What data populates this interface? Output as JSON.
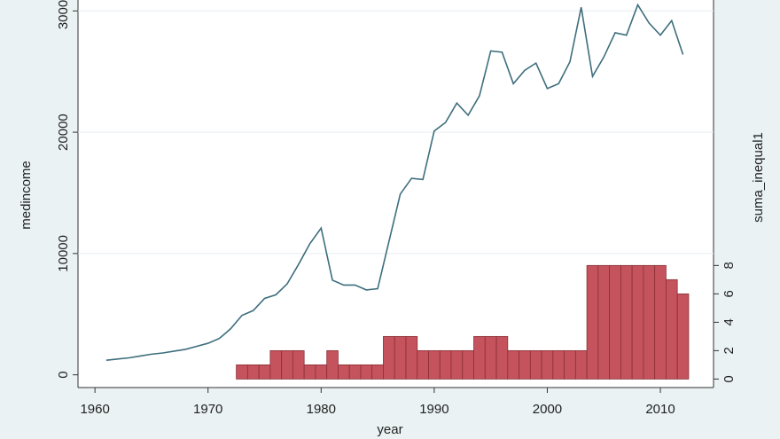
{
  "chart_data": {
    "type": "line",
    "xlabel": "year",
    "ylabel": "medincome",
    "y2label": "suma_inequal1",
    "x": [
      1961,
      1962,
      1963,
      1964,
      1965,
      1966,
      1967,
      1968,
      1969,
      1970,
      1971,
      1972,
      1973,
      1974,
      1975,
      1976,
      1977,
      1978,
      1979,
      1980,
      1981,
      1982,
      1983,
      1984,
      1985,
      1986,
      1987,
      1988,
      1989,
      1990,
      1991,
      1992,
      1993,
      1994,
      1995,
      1996,
      1997,
      1998,
      1999,
      2000,
      2001,
      2002,
      2003,
      2004,
      2005,
      2006,
      2007,
      2008,
      2009,
      2010,
      2011,
      2012
    ],
    "series": [
      {
        "type": "line",
        "color": "#3d6e7c",
        "values": [
          1200,
          1300,
          1400,
          1550,
          1700,
          1800,
          1950,
          2100,
          2350,
          2600,
          3000,
          3800,
          4900,
          5300,
          6300,
          6600,
          7500,
          9100,
          10800,
          12100,
          7800,
          7400,
          7400,
          7000,
          7100,
          11000,
          14900,
          16200,
          16100,
          20100,
          20800,
          22400,
          21400,
          23000,
          26700,
          26600,
          24000,
          25100,
          25700,
          23600,
          24000,
          25800,
          30300,
          24600,
          26200,
          28200,
          28000,
          30500,
          29000,
          28000,
          29200,
          26400
        ]
      },
      {
        "type": "bar",
        "axis": "y2",
        "color": "#c4535d",
        "values": [
          null,
          null,
          null,
          null,
          null,
          null,
          null,
          null,
          null,
          null,
          null,
          null,
          1,
          1,
          1,
          2,
          2,
          2,
          1,
          1,
          2,
          1,
          1,
          1,
          1,
          3,
          3,
          3,
          2,
          2,
          2,
          2,
          2,
          3,
          3,
          3,
          2,
          2,
          2,
          2,
          2,
          2,
          2,
          8,
          8,
          8,
          8,
          8,
          8,
          8,
          7,
          6
        ]
      }
    ],
    "xlim": [
      1958.5,
      2014.7
    ],
    "xticks": [
      1960,
      1970,
      1980,
      1990,
      2000,
      2010
    ],
    "ylim": [
      -1050,
      30900
    ],
    "yticks": [
      0,
      10000,
      20000,
      30000
    ],
    "y2lim": [
      -0.6,
      26.7
    ],
    "y2ticks": [
      0,
      2,
      4,
      6,
      8
    ],
    "grid": true
  }
}
